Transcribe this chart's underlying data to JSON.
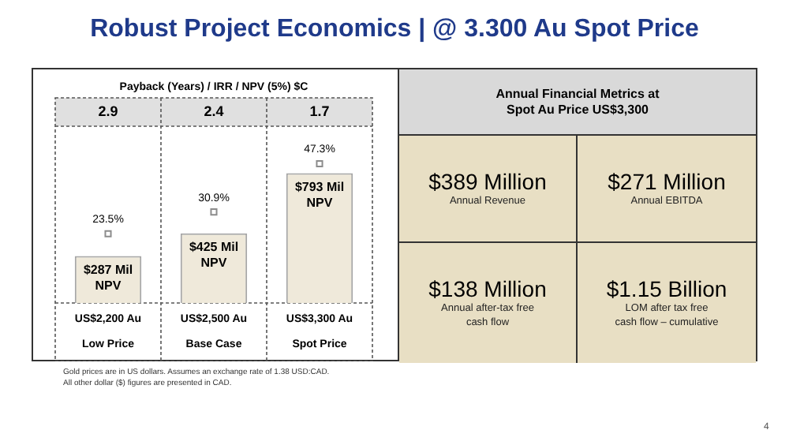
{
  "chart_data": [
    {
      "type": "bar",
      "title": "Robust Project Economics | @ 3.300 Au Spot Price",
      "subtitle": "Payback (Years) / IRR / NPV (5%) $C",
      "categories": [
        "US$2,200 Au",
        "US$2,500 Au",
        "US$3,300 Au"
      ],
      "series": [
        {
          "type": "bar",
          "color": "#efe9da",
          "values": [
            287,
            425,
            793
          ],
          "value_labels": [
            "$287 Mil\nNPV",
            "$425 Mil\nNPV",
            "$793 Mil\nNPV"
          ]
        },
        {
          "type": "scatter",
          "axis": "y2",
          "color": "#8c8c8c",
          "marker": "square",
          "values": [
            23.5,
            30.9,
            47.3
          ],
          "value_labels": [
            "23.5%",
            "30.9%",
            "47.3%"
          ]
        }
      ],
      "ylim": [
        0,
        1080
      ],
      "tick_labels": false,
      "legend": false,
      "annotations": [
        "2.9",
        "2.4",
        "1.7",
        "Low Price",
        "Base Case",
        "Spot Price",
        "Gold prices are in US dollars. Assumes an exchange rate of 1.38 USD:CAD.",
        "All other dollar ($) figures are presented in CAD.",
        "4"
      ]
    },
    {
      "type": "other",
      "title": "Annual Financial Metrics at\nSpot Au Price US$3,300",
      "annotations": [
        "$389 Million",
        "Annual Revenue",
        "$271 Million",
        "Annual EBITDA",
        "$138 Million",
        "Annual after-tax free\ncash flow",
        "$1.15 Billion",
        "LOM after tax free\ncash flow – cumulative"
      ]
    }
  ]
}
